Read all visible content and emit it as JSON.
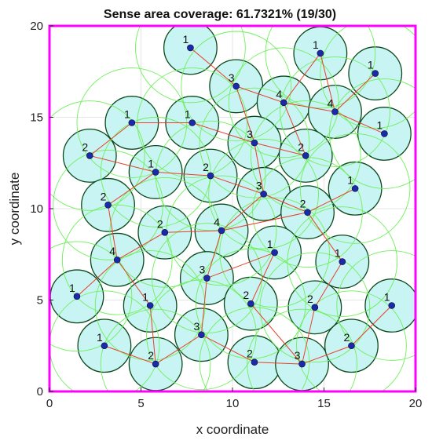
{
  "chart_data": {
    "type": "scatter",
    "title": "Sense area coverage: 61.7321% (19/30)",
    "xlabel": "x coordinate",
    "ylabel": "y coordinate",
    "xlim": [
      0,
      20
    ],
    "ylim": [
      0,
      20
    ],
    "xticks": [
      "0",
      "5",
      "10",
      "15",
      "20"
    ],
    "yticks": [
      "0",
      "5",
      "10",
      "15",
      "20"
    ],
    "grid": true,
    "colors": {
      "boundary": "#ff00ff",
      "sense_fill": "#c8f4f4",
      "sense_edge": "#0a4a1a",
      "comm_circle": "#6ef05a",
      "link": "#e8402a",
      "node": "#1a2aa8",
      "grid": "#e6e6e6"
    },
    "sense_radius": 1.45,
    "comm_radius": 3.0,
    "nodes": [
      {
        "x": 7.7,
        "y": 18.8,
        "label": "1"
      },
      {
        "x": 14.8,
        "y": 18.5,
        "label": "1"
      },
      {
        "x": 17.8,
        "y": 17.4,
        "label": "1"
      },
      {
        "x": 10.2,
        "y": 16.7,
        "label": "3"
      },
      {
        "x": 12.8,
        "y": 15.8,
        "label": "4"
      },
      {
        "x": 15.6,
        "y": 15.3,
        "label": "4"
      },
      {
        "x": 4.5,
        "y": 14.7,
        "label": "1"
      },
      {
        "x": 7.8,
        "y": 14.7,
        "label": "1"
      },
      {
        "x": 11.2,
        "y": 13.6,
        "label": "3"
      },
      {
        "x": 18.3,
        "y": 14.1,
        "label": "1"
      },
      {
        "x": 2.2,
        "y": 12.9,
        "label": "2"
      },
      {
        "x": 14.0,
        "y": 12.9,
        "label": "2"
      },
      {
        "x": 5.8,
        "y": 12.0,
        "label": "1"
      },
      {
        "x": 8.8,
        "y": 11.8,
        "label": "2"
      },
      {
        "x": 11.7,
        "y": 10.8,
        "label": "3"
      },
      {
        "x": 16.7,
        "y": 11.1,
        "label": "1"
      },
      {
        "x": 3.2,
        "y": 10.2,
        "label": "2"
      },
      {
        "x": 14.1,
        "y": 9.8,
        "label": "2"
      },
      {
        "x": 6.3,
        "y": 8.7,
        "label": "2"
      },
      {
        "x": 9.4,
        "y": 8.8,
        "label": "4"
      },
      {
        "x": 12.3,
        "y": 7.6,
        "label": "1"
      },
      {
        "x": 3.7,
        "y": 7.2,
        "label": "4"
      },
      {
        "x": 16.0,
        "y": 7.1,
        "label": "1"
      },
      {
        "x": 8.6,
        "y": 6.2,
        "label": "3"
      },
      {
        "x": 1.5,
        "y": 5.2,
        "label": "1"
      },
      {
        "x": 5.5,
        "y": 4.7,
        "label": "1"
      },
      {
        "x": 11.0,
        "y": 4.8,
        "label": "2"
      },
      {
        "x": 14.5,
        "y": 4.6,
        "label": "2"
      },
      {
        "x": 18.7,
        "y": 4.7,
        "label": "1"
      },
      {
        "x": 3.0,
        "y": 2.5,
        "label": "1"
      },
      {
        "x": 8.3,
        "y": 3.1,
        "label": "3"
      },
      {
        "x": 5.8,
        "y": 1.5,
        "label": "2"
      },
      {
        "x": 11.2,
        "y": 1.6,
        "label": "2"
      },
      {
        "x": 13.8,
        "y": 1.5,
        "label": "3"
      },
      {
        "x": 16.5,
        "y": 2.5,
        "label": "2"
      }
    ],
    "links": [
      [
        0,
        3
      ],
      [
        1,
        4
      ],
      [
        1,
        5
      ],
      [
        2,
        5
      ],
      [
        3,
        4
      ],
      [
        3,
        8
      ],
      [
        4,
        5
      ],
      [
        4,
        11
      ],
      [
        5,
        9
      ],
      [
        6,
        7
      ],
      [
        6,
        10
      ],
      [
        7,
        8
      ],
      [
        8,
        11
      ],
      [
        8,
        14
      ],
      [
        10,
        12
      ],
      [
        12,
        13
      ],
      [
        12,
        16
      ],
      [
        13,
        14
      ],
      [
        14,
        17
      ],
      [
        15,
        17
      ],
      [
        16,
        21
      ],
      [
        17,
        19
      ],
      [
        18,
        19
      ],
      [
        18,
        21
      ],
      [
        19,
        23
      ],
      [
        20,
        23
      ],
      [
        20,
        26
      ],
      [
        21,
        24
      ],
      [
        21,
        25
      ],
      [
        22,
        27
      ],
      [
        23,
        30
      ],
      [
        25,
        31
      ],
      [
        26,
        33
      ],
      [
        27,
        33
      ],
      [
        28,
        34
      ],
      [
        29,
        31
      ],
      [
        30,
        31
      ],
      [
        30,
        32
      ],
      [
        32,
        33
      ],
      [
        33,
        34
      ],
      [
        19,
        14
      ],
      [
        22,
        17
      ]
    ]
  }
}
